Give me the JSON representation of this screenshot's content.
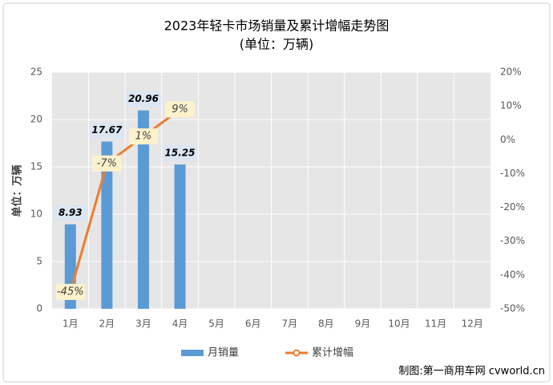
{
  "chart_data": {
    "type": "bar",
    "title": "2023年轻卡市场销量及累计增幅走势图",
    "subtitle": "(单位：万辆)",
    "y_label": "单位：万辆",
    "source": "制图:第一商用车网 cvworld.cn",
    "categories": [
      "1月",
      "2月",
      "3月",
      "4月",
      "5月",
      "6月",
      "7月",
      "8月",
      "9月",
      "10月",
      "11月",
      "12月"
    ],
    "series": [
      {
        "name": "月销量",
        "type": "bar",
        "color": "#5b9bd5",
        "values": [
          8.93,
          17.67,
          20.96,
          15.25,
          null,
          null,
          null,
          null,
          null,
          null,
          null,
          null
        ]
      },
      {
        "name": "累计增幅",
        "type": "line",
        "axis": "y2",
        "color": "#ed7d31",
        "values": [
          -45,
          -7,
          1,
          9,
          null,
          null,
          null,
          null,
          null,
          null,
          null,
          null
        ],
        "value_labels": [
          "-45%",
          "-7%",
          "1%",
          "9%",
          null,
          null,
          null,
          null,
          null,
          null,
          null,
          null
        ]
      }
    ],
    "ylim": [
      0,
      25
    ],
    "yticks": [
      0,
      5,
      10,
      15,
      20,
      25
    ],
    "y2lim": [
      -50,
      20
    ],
    "y2ticks": [
      {
        "value": -50,
        "label": "-50%"
      },
      {
        "value": -40,
        "label": "-40%"
      },
      {
        "value": -30,
        "label": "-30%"
      },
      {
        "value": -20,
        "label": "-20%"
      },
      {
        "value": -10,
        "label": "-10%"
      },
      {
        "value": 0,
        "label": "0%"
      },
      {
        "value": 10,
        "label": "10%"
      },
      {
        "value": 20,
        "label": "20%"
      }
    ],
    "grid": true,
    "legend": "bottom"
  }
}
